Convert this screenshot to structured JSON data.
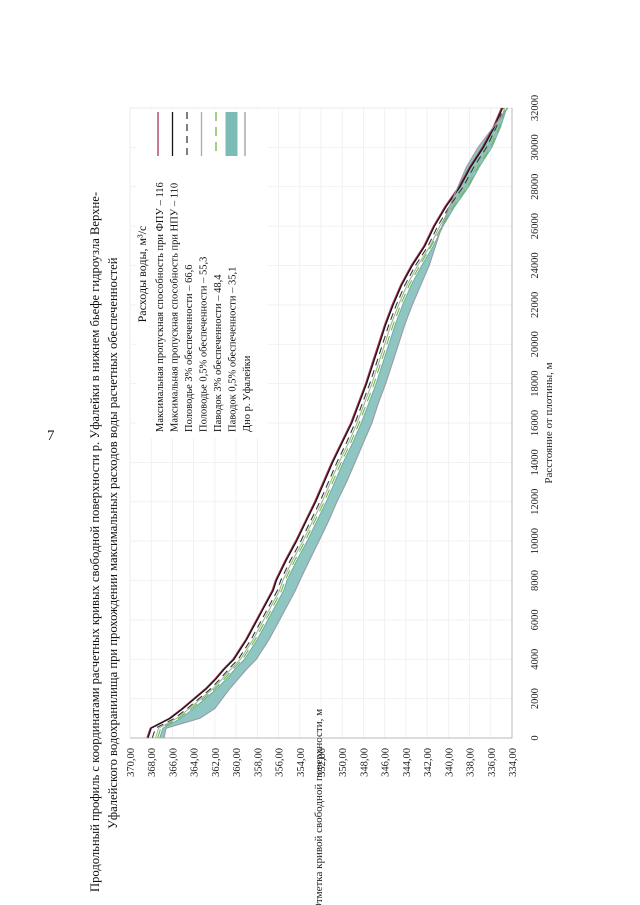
{
  "page": {
    "number": "7"
  },
  "title": {
    "line1": "Продольный профиль с координатами расчетных кривых свободной поверхности р. Уфалейки в нижнем бьефе гидроузла Верхне-",
    "line2": "Уфалейского водохранилища при прохождении максимальных расходов воды расчетных обеспеченностей"
  },
  "chart_data": {
    "type": "line",
    "xlabel": "Расстояние от плотины, м",
    "ylabel": "Отметка кривой свободной поверхности, м",
    "xlim": [
      0,
      32000
    ],
    "ylim": [
      334,
      370
    ],
    "x_ticks": [
      "0",
      "2000",
      "4000",
      "6000",
      "8000",
      "10000",
      "12000",
      "14000",
      "16000",
      "18000",
      "20000",
      "22000",
      "24000",
      "26000",
      "28000",
      "30000",
      "32000"
    ],
    "y_ticks": [
      "334,00",
      "336,00",
      "338,00",
      "340,00",
      "342,00",
      "344,00",
      "346,00",
      "348,00",
      "350,00",
      "352,00",
      "354,00",
      "356,00",
      "358,00",
      "360,00",
      "362,00",
      "364,00",
      "366,00",
      "368,00",
      "370,00"
    ],
    "legend": {
      "title": "Расходы воды, м³/с",
      "position": "top-right"
    },
    "x": [
      0,
      500,
      1000,
      1500,
      2000,
      2500,
      3000,
      3500,
      4000,
      4500,
      5000,
      5500,
      6000,
      6500,
      7000,
      7500,
      8000,
      9000,
      10000,
      11000,
      12000,
      13000,
      14000,
      15000,
      16000,
      17000,
      18000,
      19000,
      20000,
      21000,
      22000,
      23000,
      24000,
      25000,
      26000,
      27000,
      28000,
      29000,
      30000,
      31000,
      32000
    ],
    "series": [
      {
        "name": "Максимальная пропускная способность при ФПУ – 116",
        "color": "#b03050",
        "dash": "solid",
        "values": [
          368.4,
          368.1,
          366.3,
          365.1,
          364.0,
          362.9,
          362.0,
          361.2,
          360.3,
          359.7,
          359.1,
          358.6,
          358.1,
          357.6,
          357.1,
          356.6,
          356.3,
          355.4,
          354.4,
          353.5,
          352.6,
          351.8,
          351.0,
          350.1,
          349.2,
          348.5,
          347.8,
          347.2,
          346.6,
          346.0,
          345.3,
          344.5,
          343.5,
          342.3,
          341.4,
          340.3,
          339.0,
          338.0,
          336.8,
          335.8,
          335.0
        ]
      },
      {
        "name": "Максимальная пропускная способность при НПУ – 110",
        "color": "#151515",
        "dash": "solid",
        "values": [
          368.3,
          368.0,
          366.2,
          365.0,
          363.9,
          362.8,
          361.9,
          361.1,
          360.2,
          359.6,
          359.0,
          358.5,
          358.0,
          357.5,
          357.0,
          356.5,
          356.2,
          355.3,
          354.3,
          353.4,
          352.5,
          351.7,
          350.9,
          350.0,
          349.1,
          348.4,
          347.7,
          347.1,
          346.5,
          345.9,
          345.2,
          344.4,
          343.4,
          342.2,
          341.3,
          340.2,
          338.9,
          337.9,
          336.7,
          335.7,
          334.9
        ]
      },
      {
        "name": "Половодье 3% обеспеченности – 66,6",
        "color": "#3a3a3a",
        "dash": "7,5",
        "values": [
          367.9,
          367.6,
          365.8,
          364.6,
          363.5,
          362.4,
          361.5,
          360.7,
          359.8,
          359.2,
          358.6,
          358.1,
          357.6,
          357.1,
          356.6,
          356.1,
          355.8,
          354.9,
          353.9,
          353.0,
          352.1,
          351.3,
          350.5,
          349.6,
          348.8,
          348.1,
          347.4,
          346.8,
          346.2,
          345.6,
          344.9,
          344.1,
          343.1,
          341.9,
          341.0,
          339.9,
          338.6,
          337.6,
          336.4,
          335.5,
          334.8
        ]
      },
      {
        "name": "Половодье 0,5% обеспеченности – 55,3",
        "color": "#9ab898",
        "dash": "solid",
        "values": [
          367.6,
          367.3,
          365.6,
          364.4,
          363.3,
          362.2,
          361.3,
          360.5,
          359.6,
          359.0,
          358.4,
          357.9,
          357.4,
          356.9,
          356.4,
          355.9,
          355.6,
          354.7,
          353.7,
          352.8,
          351.9,
          351.1,
          350.3,
          349.4,
          348.6,
          347.9,
          347.2,
          346.6,
          346.0,
          345.4,
          344.7,
          343.9,
          342.9,
          341.7,
          340.8,
          339.7,
          338.4,
          337.4,
          336.2,
          335.3,
          334.7
        ]
      },
      {
        "name": "Паводок 3% обеспеченности – 48,4",
        "color": "#6fb83c",
        "dash": "9,6",
        "values": [
          367.4,
          367.1,
          365.4,
          364.2,
          363.1,
          362.0,
          361.1,
          360.3,
          359.4,
          358.8,
          358.2,
          357.7,
          357.2,
          356.7,
          356.2,
          355.7,
          355.4,
          354.5,
          353.5,
          352.6,
          351.7,
          350.9,
          350.1,
          349.2,
          348.4,
          347.7,
          347.0,
          346.4,
          345.8,
          345.2,
          344.5,
          343.7,
          342.7,
          341.6,
          340.6,
          339.5,
          338.2,
          337.2,
          336.0,
          335.2,
          334.6
        ]
      },
      {
        "name": "Паводок 0,5% обеспеченности – 35,1",
        "color": "#6fb0b0",
        "dash": "solid",
        "values": [
          367.2,
          366.9,
          365.2,
          364.0,
          362.9,
          361.8,
          360.9,
          360.1,
          359.2,
          358.6,
          358.0,
          357.5,
          357.0,
          356.5,
          356.0,
          355.5,
          355.2,
          354.3,
          353.3,
          352.4,
          351.5,
          350.7,
          349.9,
          349.0,
          348.2,
          347.5,
          346.8,
          346.2,
          345.6,
          345.0,
          344.3,
          343.5,
          342.5,
          341.4,
          340.5,
          339.4,
          338.1,
          337.1,
          335.9,
          335.1,
          334.5
        ]
      },
      {
        "name": "Дно р. Уфалейки",
        "color": "#9a9aa8",
        "dash": "solid",
        "values": [
          366.8,
          366.6,
          363.4,
          362.0,
          361.3,
          360.6,
          359.8,
          359.0,
          358.1,
          357.5,
          356.9,
          356.4,
          355.9,
          355.4,
          354.9,
          354.4,
          354.0,
          353.1,
          352.2,
          351.3,
          350.5,
          349.6,
          348.8,
          348.0,
          347.2,
          346.6,
          345.9,
          345.3,
          344.7,
          344.1,
          343.4,
          342.6,
          341.8,
          341.2,
          340.6,
          339.9,
          339.1,
          338.3,
          337.2,
          335.8,
          334.4
        ]
      }
    ]
  }
}
